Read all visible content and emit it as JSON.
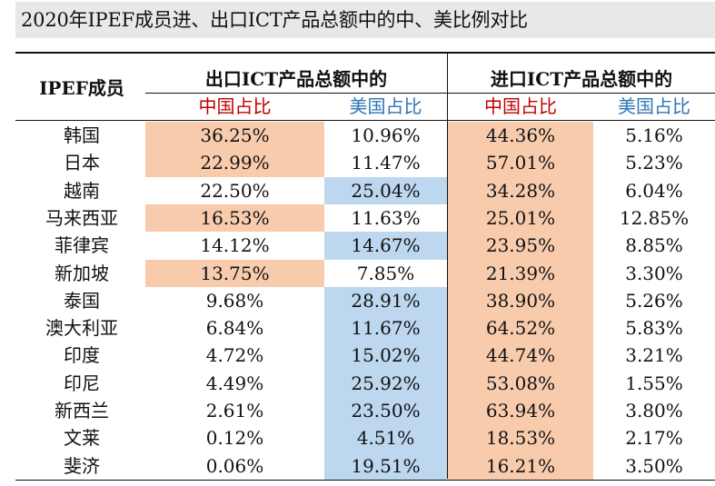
{
  "title": "2020年IPEF成员进、出口ICT产品总额中的中、美比例对比",
  "header": {
    "member_col": "IPEF成员",
    "export_group": "出口ICT产品总额中的",
    "import_group": "进口ICT产品总额中的",
    "china_share": "中国占比",
    "us_share": "美国占比"
  },
  "colors": {
    "orange_highlight": "#f8cbad",
    "blue_highlight": "#bdd7ee",
    "china_label": "#c00000",
    "us_label": "#2e75b6"
  },
  "rows": [
    {
      "member": "韩国",
      "export_china": "36.25%",
      "export_us": "10.96%",
      "import_china": "44.36%",
      "import_us": "5.16%",
      "hl": [
        "o",
        "",
        "o",
        ""
      ]
    },
    {
      "member": "日本",
      "export_china": "22.99%",
      "export_us": "11.47%",
      "import_china": "57.01%",
      "import_us": "5.23%",
      "hl": [
        "o",
        "",
        "o",
        ""
      ]
    },
    {
      "member": "越南",
      "export_china": "22.50%",
      "export_us": "25.04%",
      "import_china": "34.28%",
      "import_us": "6.04%",
      "hl": [
        "",
        "b",
        "o",
        ""
      ]
    },
    {
      "member": "马来西亚",
      "export_china": "16.53%",
      "export_us": "11.63%",
      "import_china": "25.01%",
      "import_us": "12.85%",
      "hl": [
        "o",
        "",
        "o",
        ""
      ]
    },
    {
      "member": "菲律宾",
      "export_china": "14.12%",
      "export_us": "14.67%",
      "import_china": "23.95%",
      "import_us": "8.85%",
      "hl": [
        "",
        "b",
        "o",
        ""
      ]
    },
    {
      "member": "新加坡",
      "export_china": "13.75%",
      "export_us": "7.85%",
      "import_china": "21.39%",
      "import_us": "3.30%",
      "hl": [
        "o",
        "",
        "o",
        ""
      ]
    },
    {
      "member": "泰国",
      "export_china": "9.68%",
      "export_us": "28.91%",
      "import_china": "38.90%",
      "import_us": "5.26%",
      "hl": [
        "",
        "b",
        "o",
        ""
      ]
    },
    {
      "member": "澳大利亚",
      "export_china": "6.84%",
      "export_us": "11.67%",
      "import_china": "64.52%",
      "import_us": "5.83%",
      "hl": [
        "",
        "b",
        "o",
        ""
      ]
    },
    {
      "member": "印度",
      "export_china": "4.72%",
      "export_us": "15.02%",
      "import_china": "44.74%",
      "import_us": "3.21%",
      "hl": [
        "",
        "b",
        "o",
        ""
      ]
    },
    {
      "member": "印尼",
      "export_china": "4.49%",
      "export_us": "25.92%",
      "import_china": "53.08%",
      "import_us": "1.55%",
      "hl": [
        "",
        "b",
        "o",
        ""
      ]
    },
    {
      "member": "新西兰",
      "export_china": "2.61%",
      "export_us": "23.50%",
      "import_china": "63.94%",
      "import_us": "3.80%",
      "hl": [
        "",
        "b",
        "o",
        ""
      ]
    },
    {
      "member": "文莱",
      "export_china": "0.12%",
      "export_us": "4.51%",
      "import_china": "18.53%",
      "import_us": "2.17%",
      "hl": [
        "",
        "b",
        "o",
        ""
      ]
    },
    {
      "member": "斐济",
      "export_china": "0.06%",
      "export_us": "19.51%",
      "import_china": "16.21%",
      "import_us": "3.50%",
      "hl": [
        "",
        "b",
        "o",
        ""
      ]
    }
  ]
}
